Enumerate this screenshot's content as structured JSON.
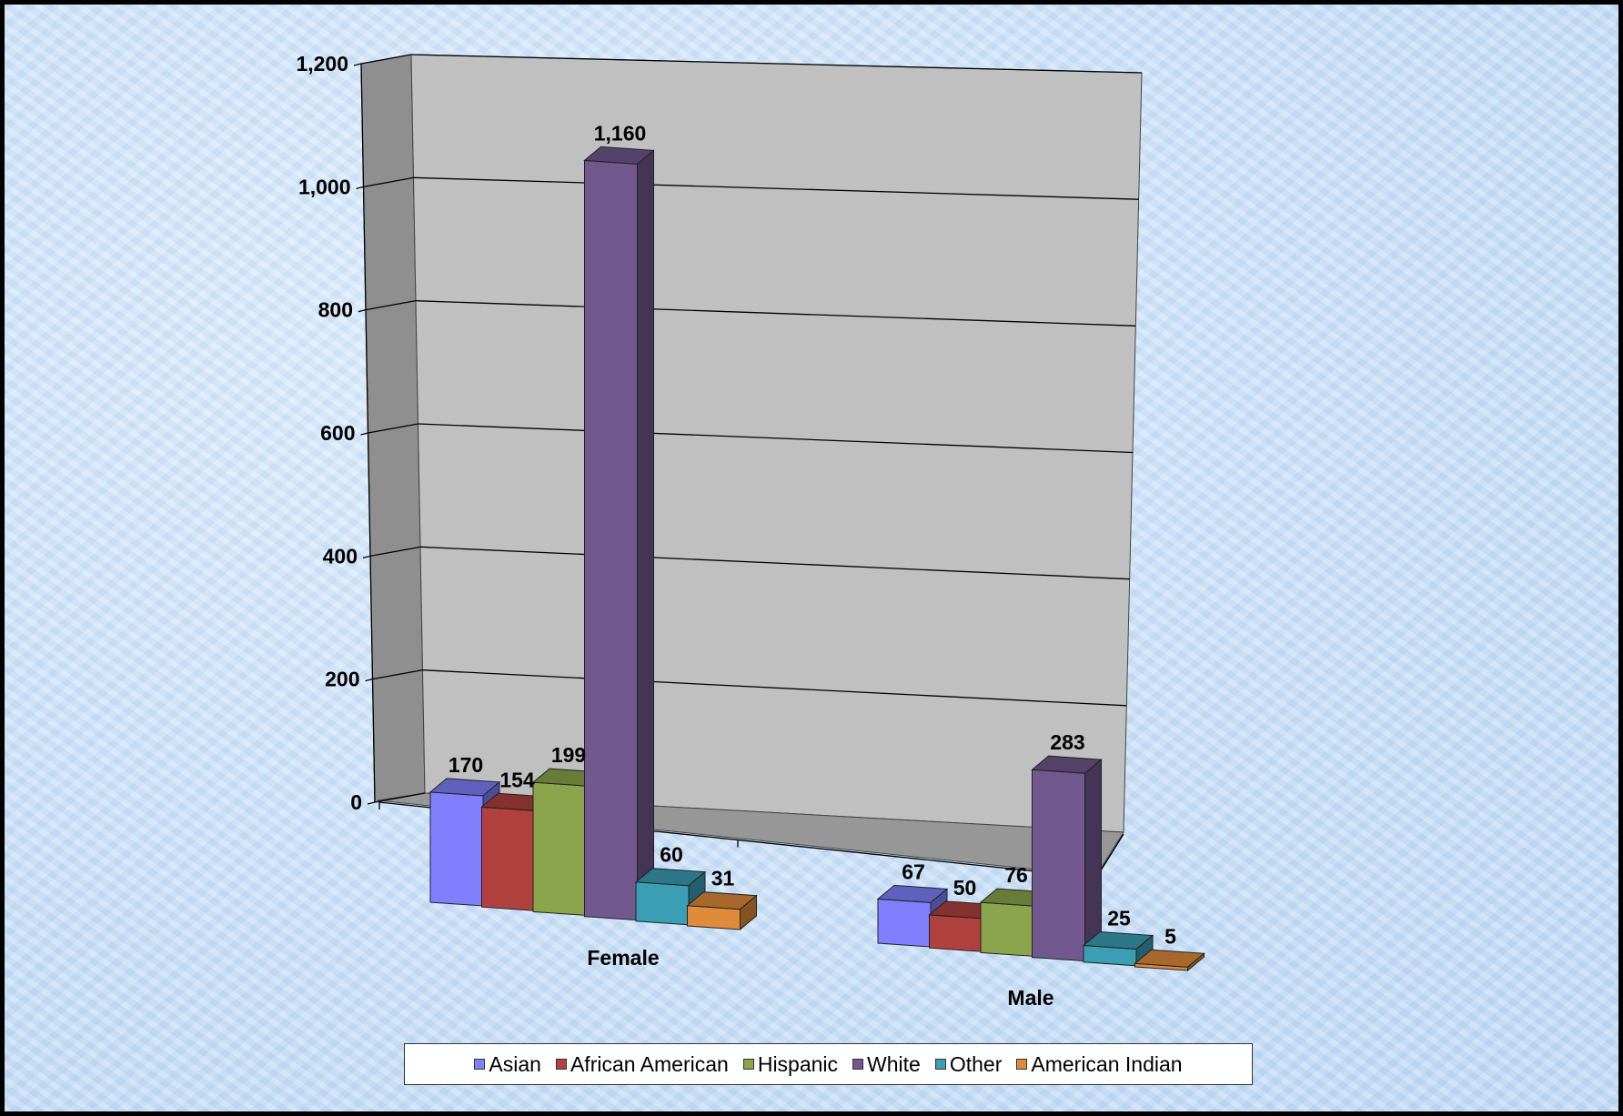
{
  "chart_data": {
    "type": "bar",
    "title": "",
    "xlabel": "",
    "ylabel": "",
    "categories": [
      "Female",
      "Male"
    ],
    "series": [
      {
        "name": "Asian",
        "color": "#8080ff",
        "values": [
          170,
          67
        ]
      },
      {
        "name": "African American",
        "color": "#b0413e",
        "values": [
          154,
          50
        ]
      },
      {
        "name": "Hispanic",
        "color": "#8aa54b",
        "values": [
          199,
          76
        ]
      },
      {
        "name": "White",
        "color": "#71588f",
        "values": [
          1160,
          283
        ]
      },
      {
        "name": "Other",
        "color": "#3a9fb5",
        "values": [
          60,
          25
        ]
      },
      {
        "name": "American Indian",
        "color": "#e08a3b",
        "values": [
          31,
          5
        ]
      }
    ],
    "ylim": [
      0,
      1200
    ],
    "yticks": [
      0,
      200,
      400,
      600,
      800,
      1000,
      1200
    ],
    "ytick_labels": [
      "0",
      "200",
      "400",
      "600",
      "800",
      "1,000",
      "1,200"
    ],
    "data_labels": [
      [
        "170",
        "154",
        "199",
        "1,160",
        "60",
        "31"
      ],
      [
        "67",
        "50",
        "76",
        "283",
        "25",
        "5"
      ]
    ],
    "grid": true,
    "legend_position": "bottom",
    "style": "3d-clustered-column"
  }
}
